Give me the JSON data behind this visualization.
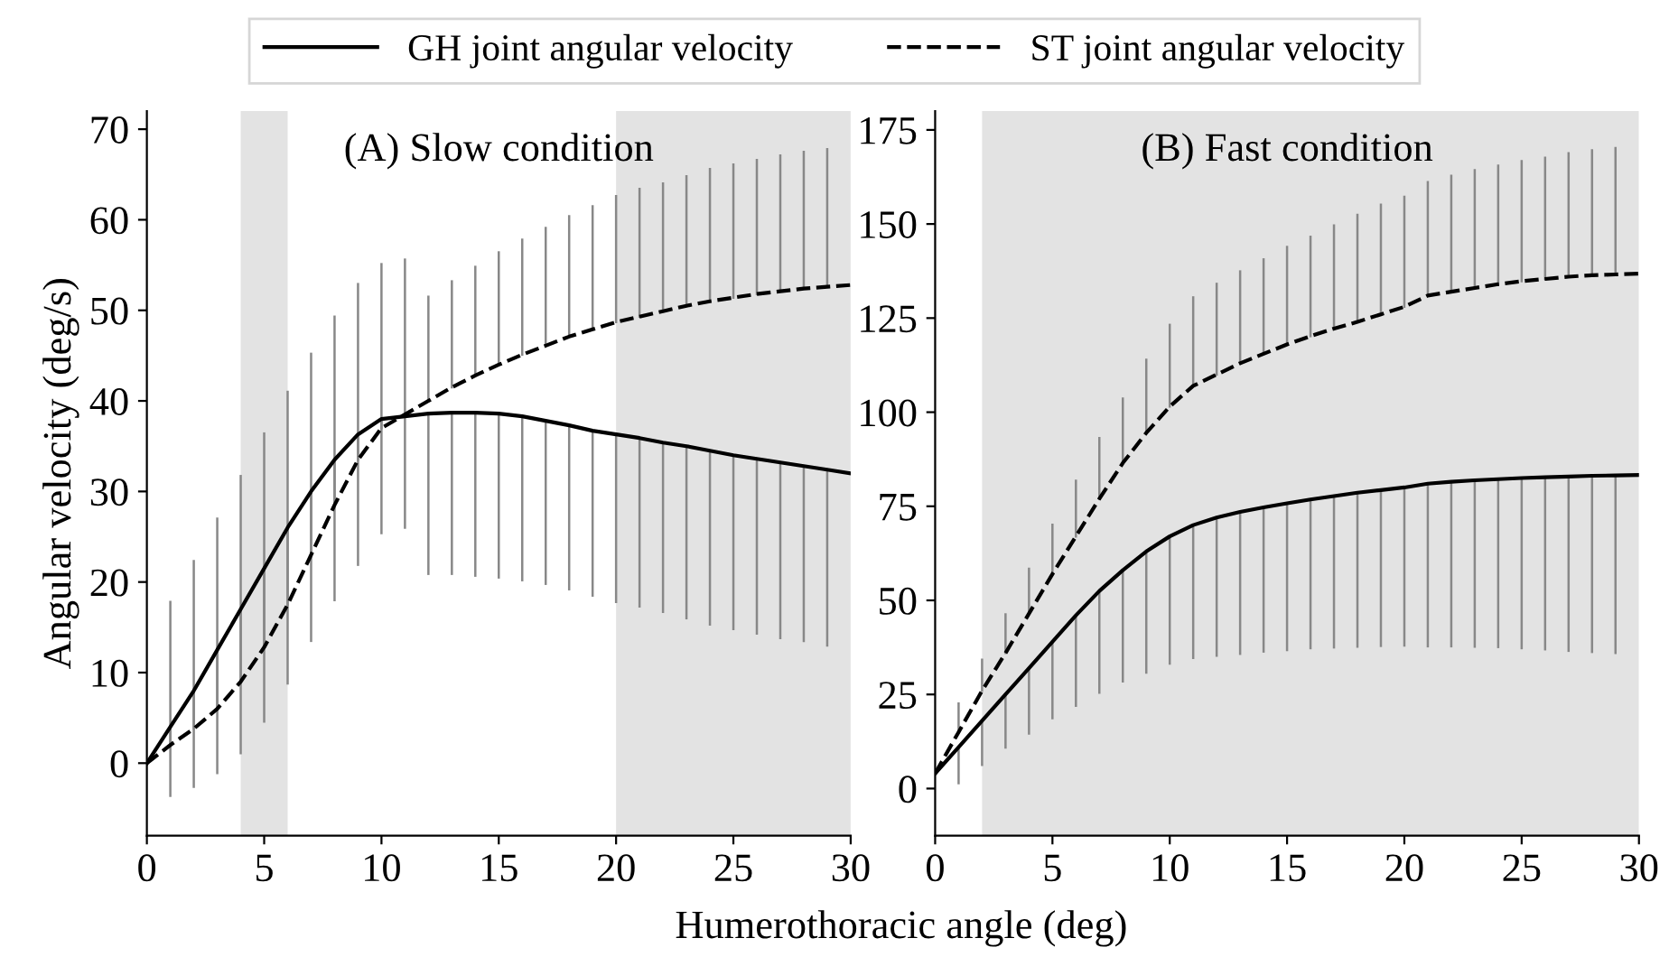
{
  "chart_data": [
    {
      "type": "line",
      "title": "(A) Slow condition",
      "xlabel": "Humerothoracic angle (deg)",
      "ylabel": "Angular velocity (deg/s)",
      "legend": "top",
      "grid": false,
      "marker": "none",
      "x": [
        0,
        1,
        2,
        3,
        4,
        5,
        6,
        7,
        8,
        9,
        10,
        11,
        12,
        13,
        14,
        15,
        16,
        17,
        18,
        19,
        20,
        21,
        22,
        23,
        24,
        25,
        26,
        27,
        28,
        29,
        30
      ],
      "xlim": [
        0,
        30
      ],
      "xticks": [
        0,
        5,
        10,
        15,
        20,
        25,
        30
      ],
      "ylim": [
        -8,
        72
      ],
      "yticks": [
        0,
        10,
        20,
        30,
        40,
        50,
        60,
        70
      ],
      "bands": [
        {
          "axis": "x",
          "from": 4,
          "to": 6,
          "color": "#e3e3e3"
        },
        {
          "axis": "x",
          "from": 20,
          "to": 30,
          "color": "#e3e3e3"
        }
      ],
      "series": [
        {
          "name": "GH joint angular velocity",
          "color": "#000000",
          "line_style": "solid",
          "values": [
            0,
            4,
            8,
            12.5,
            17,
            21.5,
            26,
            30,
            33.5,
            36.3,
            38,
            38.3,
            38.6,
            38.7,
            38.7,
            38.6,
            38.3,
            37.8,
            37.3,
            36.7,
            36.3,
            35.9,
            35.4,
            35,
            34.5,
            34,
            33.6,
            33.2,
            32.8,
            32.4,
            32
          ],
          "errors": [
            null,
            [
              -3.6,
              4
            ],
            [
              -2.6,
              8
            ],
            [
              -1.1,
              12.5
            ],
            [
              1.1,
              17
            ],
            [
              4.6,
              21.5
            ],
            [
              8.8,
              26
            ],
            [
              13.5,
              30
            ],
            [
              18,
              33.5
            ],
            [
              21.9,
              36.3
            ],
            [
              25.4,
              38
            ],
            [
              26,
              38.3
            ],
            [
              20.9,
              38.6
            ],
            [
              20.9,
              38.7
            ],
            [
              20.7,
              38.7
            ],
            [
              20.5,
              38.6
            ],
            [
              20.2,
              38.3
            ],
            [
              19.8,
              37.8
            ],
            [
              19.2,
              37.3
            ],
            [
              18.5,
              36.7
            ],
            [
              17.8,
              36.3
            ],
            [
              17.3,
              35.9
            ],
            [
              16.7,
              35.4
            ],
            [
              16,
              35
            ],
            [
              15.3,
              34.5
            ],
            [
              14.8,
              34
            ],
            [
              14.3,
              33.6
            ],
            [
              13.8,
              33.2
            ],
            [
              13.5,
              32.8
            ],
            [
              13,
              32.4
            ],
            null
          ]
        },
        {
          "name": "ST joint angular velocity",
          "color": "#000000",
          "line_style": "dashed",
          "values": [
            0,
            2,
            3.8,
            6,
            9,
            12.8,
            17.5,
            23,
            28.5,
            33.5,
            37,
            38.5,
            40,
            41.5,
            42.8,
            44,
            45.1,
            46.1,
            47.1,
            47.9,
            48.7,
            49.3,
            49.9,
            50.5,
            51,
            51.4,
            51.8,
            52.1,
            52.4,
            52.6,
            52.8
          ],
          "errors": [
            null,
            [
              2,
              17.8
            ],
            [
              3.8,
              22.3
            ],
            [
              6,
              27
            ],
            [
              9,
              31.7
            ],
            [
              12.8,
              36.4
            ],
            [
              17.5,
              41
            ],
            [
              23,
              45.2
            ],
            [
              28.5,
              49.3
            ],
            [
              33.5,
              52.9
            ],
            [
              37,
              55.1
            ],
            [
              38.5,
              55.6
            ],
            [
              40,
              51.5
            ],
            [
              41.5,
              53.2
            ],
            [
              42.8,
              54.8
            ],
            [
              44,
              56.4
            ],
            [
              45.1,
              57.8
            ],
            [
              46.1,
              59.1
            ],
            [
              47.1,
              60.4
            ],
            [
              47.9,
              61.5
            ],
            [
              48.7,
              62.6
            ],
            [
              49.3,
              63.4
            ],
            [
              49.9,
              64
            ],
            [
              50.5,
              64.8
            ],
            [
              51,
              65.6
            ],
            [
              51.4,
              66.1
            ],
            [
              51.8,
              66.6
            ],
            [
              52.1,
              67.1
            ],
            [
              52.4,
              67.5
            ],
            [
              52.6,
              67.8
            ],
            null
          ]
        }
      ]
    },
    {
      "type": "line",
      "title": "(B) Fast condition",
      "grid": false,
      "marker": "none",
      "x": [
        0,
        1,
        2,
        3,
        4,
        5,
        6,
        7,
        8,
        9,
        10,
        11,
        12,
        13,
        14,
        15,
        16,
        17,
        18,
        19,
        20,
        21,
        22,
        23,
        24,
        25,
        26,
        27,
        28,
        29,
        30
      ],
      "xlim": [
        0,
        30
      ],
      "xticks": [
        0,
        5,
        10,
        15,
        20,
        25,
        30
      ],
      "ylim": [
        -12.5,
        180
      ],
      "yticks": [
        0,
        25,
        50,
        75,
        100,
        125,
        150,
        175
      ],
      "bands": [
        {
          "axis": "x",
          "from": 2,
          "to": 30,
          "color": "#e3e3e3"
        }
      ],
      "series": [
        {
          "color": "#000000",
          "line_style": "solid",
          "values": [
            4,
            11,
            18,
            25,
            32,
            39,
            46,
            52.5,
            58,
            63,
            67,
            70,
            72,
            73.5,
            74.7,
            75.8,
            76.8,
            77.7,
            78.6,
            79.3,
            80,
            81,
            81.5,
            81.9,
            82.2,
            82.5,
            82.7,
            82.9,
            83.1,
            83.2,
            83.3
          ],
          "errors": [
            null,
            [
              1.4,
              11
            ],
            [
              6.3,
              18
            ],
            [
              10.9,
              25
            ],
            [
              14.6,
              32
            ],
            [
              18.7,
              39
            ],
            [
              22,
              46
            ],
            [
              25.5,
              52.5
            ],
            [
              28.5,
              58
            ],
            [
              30.8,
              63
            ],
            [
              33.2,
              67
            ],
            [
              34.7,
              70
            ],
            [
              35.3,
              72
            ],
            [
              35.8,
              73.5
            ],
            [
              36.4,
              74.7
            ],
            [
              36.8,
              75.8
            ],
            [
              37.3,
              76.8
            ],
            [
              37.5,
              77.7
            ],
            [
              37.7,
              78.6
            ],
            [
              37.9,
              79.3
            ],
            [
              38,
              80
            ],
            [
              37.8,
              81
            ],
            [
              37.8,
              81.5
            ],
            [
              37.7,
              81.9
            ],
            [
              37.6,
              82.2
            ],
            [
              37.3,
              82.5
            ],
            [
              37,
              82.7
            ],
            [
              36.6,
              82.9
            ],
            [
              36.3,
              83.1
            ],
            [
              36,
              83.2
            ],
            null
          ]
        },
        {
          "color": "#000000",
          "line_style": "dashed",
          "values": [
            4,
            15,
            26,
            36,
            46.5,
            57,
            67,
            77,
            86.5,
            94.5,
            101.5,
            107,
            110,
            113,
            115.5,
            118,
            120.2,
            122.2,
            124,
            126,
            128,
            131,
            132,
            133,
            134,
            134.8,
            135.4,
            136,
            136.4,
            136.6,
            136.8
          ],
          "errors": [
            null,
            [
              15,
              22.6
            ],
            [
              26,
              34.2
            ],
            [
              36,
              46.3
            ],
            [
              46.5,
              58.4
            ],
            [
              57,
              70.1
            ],
            [
              67,
              81.8
            ],
            [
              77,
              93.1
            ],
            [
              86.5,
              103.6
            ],
            [
              94.5,
              113.9
            ],
            [
              101.5,
              123.2
            ],
            [
              107,
              130.5
            ],
            [
              110,
              134.1
            ],
            [
              113,
              137.4
            ],
            [
              115.5,
              140.6
            ],
            [
              118,
              143.9
            ],
            [
              120.2,
              146.6
            ],
            [
              122.2,
              149.6
            ],
            [
              124,
              152.4
            ],
            [
              126,
              155.1
            ],
            [
              128,
              157.2
            ],
            [
              131,
              161.1
            ],
            [
              132,
              162.8
            ],
            [
              133,
              164.3
            ],
            [
              134,
              165.5
            ],
            [
              134.8,
              166.7
            ],
            [
              135.4,
              167.6
            ],
            [
              136,
              168.8
            ],
            [
              136.4,
              169.6
            ],
            [
              136.6,
              170.2
            ],
            null
          ]
        }
      ]
    }
  ]
}
